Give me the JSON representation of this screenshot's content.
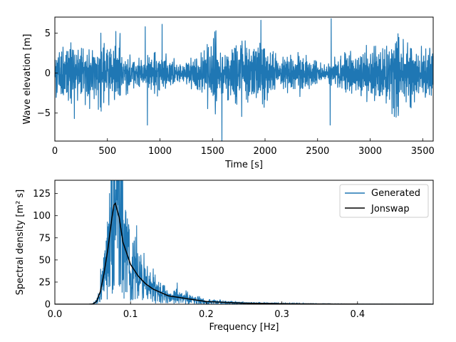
{
  "colors": {
    "generated": "#1f77b4",
    "jonswap": "#000000",
    "axes": "#000000"
  },
  "chart_data": [
    {
      "type": "line",
      "title": "",
      "xlabel": "Time [s]",
      "ylabel": "Wave elevation [m]",
      "xlim": [
        0,
        3600
      ],
      "ylim": [
        -8.5,
        7
      ],
      "xticks": [
        0,
        500,
        1000,
        1500,
        2000,
        2500,
        3000,
        3500
      ],
      "yticks": [
        -5,
        0,
        5
      ],
      "grid": false,
      "series": [
        {
          "color": "#1f77b4",
          "description_points": "random sea-state elevation, roughly zero mean, std ~1.7 m",
          "peaks": [
            {
              "x": 1590,
              "y": -8.5
            },
            {
              "x": 2630,
              "y": 6.8
            },
            {
              "x": 1960,
              "y": 6.6
            },
            {
              "x": 2620,
              "y": -6.5
            },
            {
              "x": 880,
              "y": -6.5
            },
            {
              "x": 860,
              "y": 5.8
            },
            {
              "x": 1020,
              "y": 6.1
            }
          ]
        }
      ]
    },
    {
      "type": "line",
      "title": "",
      "xlabel": "Frequency [Hz]",
      "ylabel": "Spectral density [m² s]",
      "xlim": [
        0,
        0.5
      ],
      "ylim": [
        0,
        140
      ],
      "xticks": [
        0.0,
        0.1,
        0.2,
        0.3,
        0.4
      ],
      "xtick_labels": [
        "0.0",
        "0.1",
        "0.2",
        "0.3",
        "0.4"
      ],
      "yticks": [
        0,
        25,
        50,
        75,
        100,
        125
      ],
      "grid": false,
      "legend": {
        "placement": "top-right",
        "entries": [
          "Generated",
          "Jonswap"
        ]
      },
      "series": [
        {
          "name": "Generated",
          "color": "#1f77b4",
          "peak_frequency": 0.079,
          "peak_value": 140
        },
        {
          "name": "Jonswap",
          "color": "#000000",
          "x": [
            0.045,
            0.05,
            0.055,
            0.06,
            0.065,
            0.07,
            0.075,
            0.078,
            0.08,
            0.085,
            0.09,
            0.1,
            0.11,
            0.12,
            0.13,
            0.15,
            0.2,
            0.25,
            0.3,
            0.35,
            0.4,
            0.45,
            0.5
          ],
          "y": [
            0,
            0.3,
            3,
            14,
            35,
            62,
            95,
            112,
            114,
            98,
            70,
            45,
            32,
            23,
            17,
            9.5,
            3,
            1.2,
            0.6,
            0.3,
            0.15,
            0.08,
            0.05
          ]
        }
      ]
    }
  ]
}
